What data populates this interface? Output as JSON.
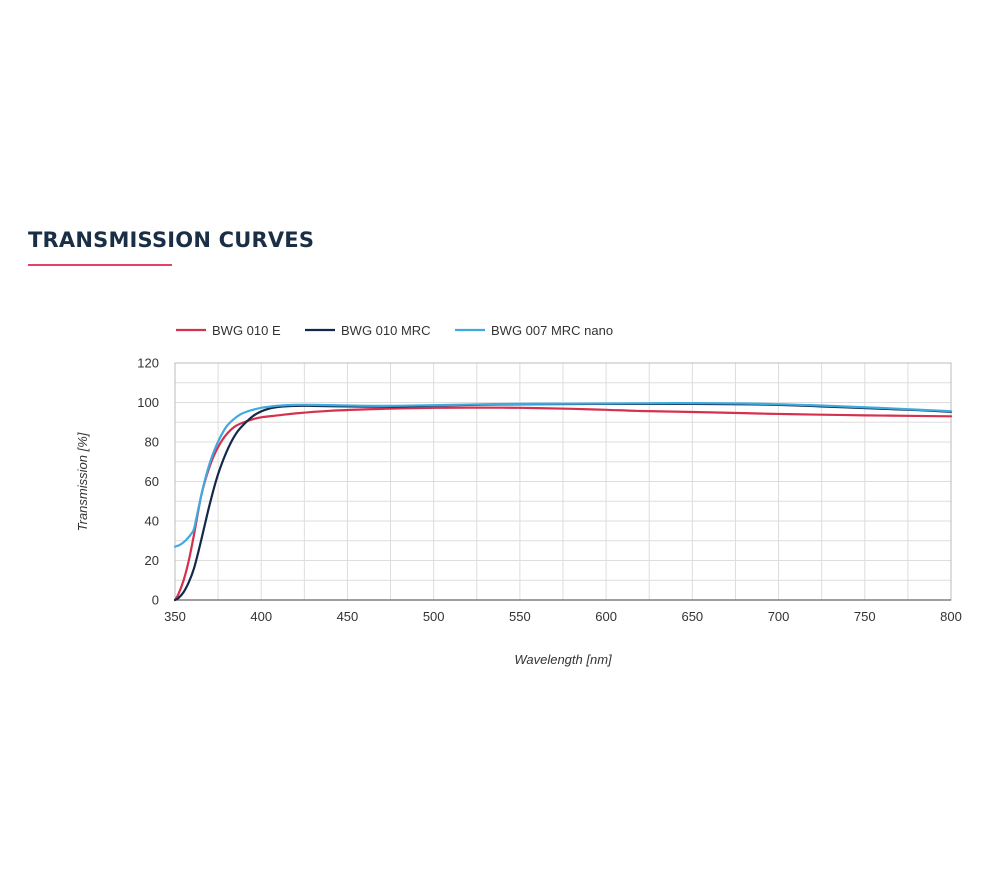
{
  "section": {
    "title": "TRANSMISSION CURVES"
  },
  "colors": {
    "title": "#1a2e46",
    "accent": "#e0436b",
    "grid": "#dddddd"
  },
  "chart_data": {
    "type": "line",
    "xlabel": "Wavelength [nm]",
    "ylabel": "Transmission [%]",
    "xlim": [
      350,
      800
    ],
    "ylim": [
      0,
      120
    ],
    "xticks": [
      350,
      400,
      450,
      500,
      550,
      600,
      650,
      700,
      750,
      800
    ],
    "yticks": [
      0,
      20,
      40,
      60,
      80,
      100,
      120
    ],
    "x_minor_step": 25,
    "y_minor_step": 10,
    "grid": true,
    "legend_position": "top-left",
    "series": [
      {
        "name": "BWG 010 E",
        "color": "#d6304f",
        "points": [
          [
            350,
            0
          ],
          [
            352,
            3
          ],
          [
            355,
            10
          ],
          [
            358,
            20
          ],
          [
            361,
            33
          ],
          [
            365,
            52
          ],
          [
            368,
            62
          ],
          [
            372,
            72
          ],
          [
            376,
            79
          ],
          [
            380,
            84
          ],
          [
            385,
            88
          ],
          [
            390,
            90
          ],
          [
            395,
            91.5
          ],
          [
            400,
            92.5
          ],
          [
            410,
            93.5
          ],
          [
            420,
            94.5
          ],
          [
            440,
            95.8
          ],
          [
            460,
            96.5
          ],
          [
            480,
            97
          ],
          [
            500,
            97.3
          ],
          [
            520,
            97.4
          ],
          [
            550,
            97.3
          ],
          [
            580,
            96.8
          ],
          [
            600,
            96.3
          ],
          [
            620,
            95.7
          ],
          [
            650,
            95.2
          ],
          [
            680,
            94.6
          ],
          [
            700,
            94.2
          ],
          [
            720,
            93.9
          ],
          [
            750,
            93.5
          ],
          [
            780,
            93.2
          ],
          [
            800,
            93
          ]
        ]
      },
      {
        "name": "BWG 010 MRC",
        "color": "#13294b",
        "points": [
          [
            350,
            0
          ],
          [
            352,
            1
          ],
          [
            355,
            4
          ],
          [
            358,
            9
          ],
          [
            361,
            16
          ],
          [
            364,
            26
          ],
          [
            367,
            37
          ],
          [
            370,
            48
          ],
          [
            374,
            61
          ],
          [
            378,
            71
          ],
          [
            382,
            79
          ],
          [
            386,
            85
          ],
          [
            390,
            89
          ],
          [
            395,
            93
          ],
          [
            400,
            95.5
          ],
          [
            405,
            97
          ],
          [
            410,
            97.8
          ],
          [
            420,
            98.3
          ],
          [
            430,
            98.3
          ],
          [
            450,
            98
          ],
          [
            470,
            97.9
          ],
          [
            490,
            98.2
          ],
          [
            510,
            98.6
          ],
          [
            530,
            98.9
          ],
          [
            550,
            99.1
          ],
          [
            580,
            99.2
          ],
          [
            600,
            99.3
          ],
          [
            620,
            99.3
          ],
          [
            650,
            99.3
          ],
          [
            680,
            99.1
          ],
          [
            700,
            98.8
          ],
          [
            720,
            98.2
          ],
          [
            740,
            97.5
          ],
          [
            760,
            96.8
          ],
          [
            780,
            96.2
          ],
          [
            800,
            95.3
          ]
        ]
      },
      {
        "name": "BWG 007 MRC nano",
        "color": "#3fa9e0",
        "points": [
          [
            350,
            27
          ],
          [
            353,
            28
          ],
          [
            356,
            30
          ],
          [
            359,
            33
          ],
          [
            361,
            36
          ],
          [
            363,
            44
          ],
          [
            366,
            56
          ],
          [
            369,
            66
          ],
          [
            372,
            74
          ],
          [
            376,
            82
          ],
          [
            380,
            88
          ],
          [
            384,
            91.5
          ],
          [
            388,
            94
          ],
          [
            392,
            95.5
          ],
          [
            396,
            96.5
          ],
          [
            400,
            97.3
          ],
          [
            405,
            97.9
          ],
          [
            410,
            98.4
          ],
          [
            420,
            98.8
          ],
          [
            430,
            98.8
          ],
          [
            450,
            98.5
          ],
          [
            470,
            98.3
          ],
          [
            490,
            98.5
          ],
          [
            510,
            98.8
          ],
          [
            530,
            99.1
          ],
          [
            550,
            99.3
          ],
          [
            580,
            99.4
          ],
          [
            600,
            99.5
          ],
          [
            620,
            99.6
          ],
          [
            650,
            99.7
          ],
          [
            680,
            99.5
          ],
          [
            700,
            99.1
          ],
          [
            720,
            98.6
          ],
          [
            740,
            97.9
          ],
          [
            760,
            97.2
          ],
          [
            780,
            96.4
          ],
          [
            800,
            95.6
          ]
        ]
      }
    ]
  }
}
